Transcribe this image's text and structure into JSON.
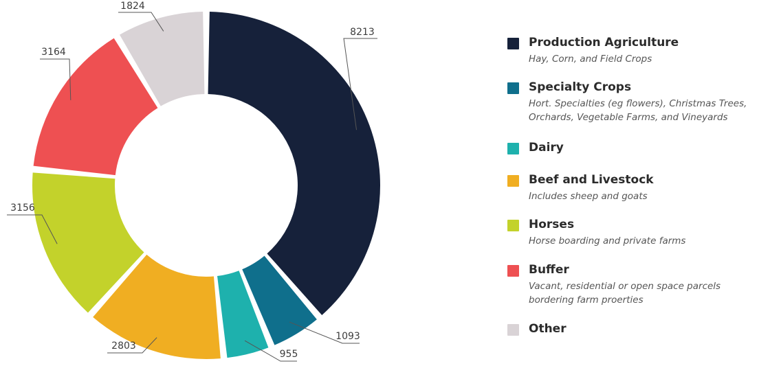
{
  "chart_data": {
    "type": "pie",
    "donut": true,
    "categories": [
      "Production Agriculture",
      "Specialty Crops",
      "Dairy",
      "Beef and Livestock",
      "Horses",
      "Buffer",
      "Other"
    ],
    "values": [
      8213,
      1093,
      955,
      2803,
      3156,
      3164,
      1824
    ],
    "data_labels": [
      "8213",
      "1093",
      "955",
      "2803",
      "3156",
      "3164",
      "1824"
    ],
    "colors": [
      "#16213a",
      "#0f6f8c",
      "#1eb1ad",
      "#f0ae22",
      "#c3d22b",
      "#ee5052",
      "#d9d3d6"
    ],
    "legend_position": "right",
    "legend": [
      {
        "title": "Production Agriculture",
        "lines": [
          "Hay, Corn, and Field Crops"
        ],
        "color": "#16213a"
      },
      {
        "title": "Specialty Crops",
        "lines": [
          "Hort. Specialties (eg flowers), Christmas Trees,",
          "Orchards, Vegetable Farms, and Vineyards"
        ],
        "color": "#0f6f8c"
      },
      {
        "title": "Dairy",
        "lines": [],
        "color": "#1eb1ad"
      },
      {
        "title": "Beef and Livestock",
        "lines": [
          "Includes sheep and goats"
        ],
        "color": "#f0ae22"
      },
      {
        "title": "Horses",
        "lines": [
          "Horse boarding and private farms"
        ],
        "color": "#c3d22b"
      },
      {
        "title": "Buffer",
        "lines": [
          "Vacant, residential or open space parcels",
          "bordering farm proerties"
        ],
        "color": "#ee5052"
      },
      {
        "title": "Other",
        "lines": [],
        "color": "#d9d3d6"
      }
    ]
  }
}
